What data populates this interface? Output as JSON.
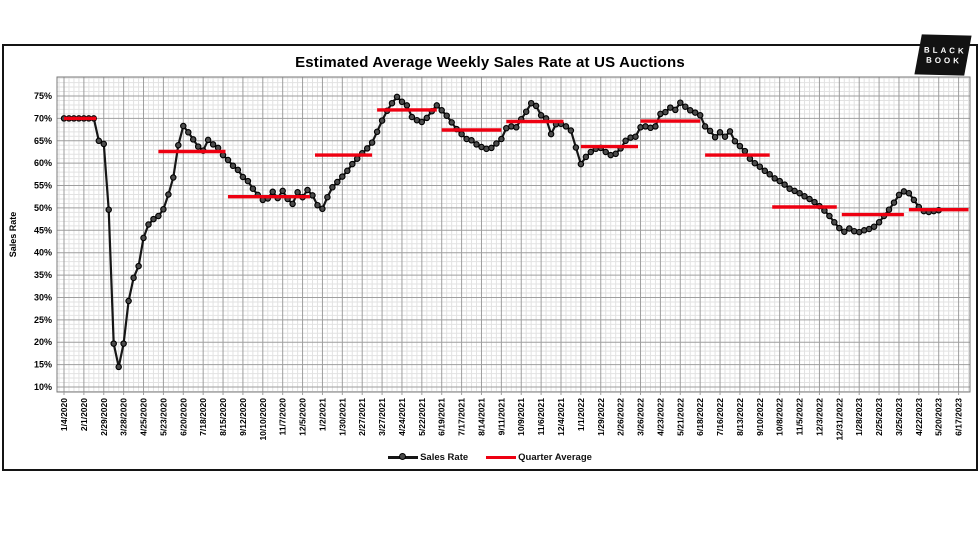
{
  "title": "Estimated Average Weekly Sales Rate at US Auctions",
  "logo": {
    "line1": "BLACK",
    "line2": "BOOK"
  },
  "y_axis": {
    "title": "Sales Rate",
    "ticks": [
      "10%",
      "15%",
      "20%",
      "25%",
      "30%",
      "35%",
      "40%",
      "45%",
      "50%",
      "55%",
      "60%",
      "65%",
      "70%",
      "75%"
    ],
    "min": 10,
    "max": 75,
    "step": 5
  },
  "x_axis": {
    "weeks_per_tick": 4,
    "tick_labels": [
      "1/4/2020",
      "2/1/2020",
      "2/29/2020",
      "3/28/2020",
      "4/25/2020",
      "5/23/2020",
      "6/20/2020",
      "7/18/2020",
      "8/15/2020",
      "9/12/2020",
      "10/10/2020",
      "11/7/2020",
      "12/5/2020",
      "1/2/2021",
      "1/30/2021",
      "2/27/2021",
      "3/27/2021",
      "4/24/2021",
      "5/22/2021",
      "6/19/2021",
      "7/17/2021",
      "8/14/2021",
      "9/11/2021",
      "10/9/2021",
      "11/6/2021",
      "12/4/2021",
      "1/1/2022",
      "1/29/2022",
      "2/26/2022",
      "3/26/2022",
      "4/23/2022",
      "5/21/2022",
      "6/18/2022",
      "7/16/2022",
      "8/13/2022",
      "9/10/2022",
      "10/8/2022",
      "11/5/2022",
      "12/3/2022",
      "12/31/2022",
      "1/28/2023",
      "2/25/2023",
      "3/25/2023",
      "4/22/2023",
      "5/20/2023",
      "6/17/2023"
    ]
  },
  "legend": {
    "items": [
      {
        "label": "Sales Rate",
        "type": "line-marker",
        "color": "#161616"
      },
      {
        "label": "Quarter Average",
        "type": "line",
        "color": "#ee0011"
      }
    ]
  },
  "chart_data": {
    "type": "line",
    "title": "Estimated Average Weekly Sales Rate at US Auctions",
    "ylabel": "Sales Rate",
    "ylim": [
      10,
      75
    ],
    "grid": true,
    "legend_position": "bottom",
    "x_start_label": "1/4/2020",
    "x_interval": "weekly",
    "series": [
      {
        "name": "Sales Rate",
        "unit": "percent",
        "values": [
          70,
          70,
          70,
          70,
          70,
          70,
          70,
          65,
          64.3,
          49.6,
          19.7,
          14.5,
          19.7,
          29.2,
          34.4,
          37,
          43.3,
          46.3,
          47.5,
          48.2,
          49.7,
          53,
          56.8,
          64,
          68.3,
          66.9,
          65.3,
          63.7,
          62.8,
          65.2,
          64.2,
          63.4,
          61.8,
          60.7,
          59.4,
          58.5,
          56.9,
          56,
          54.3,
          52.9,
          51.8,
          52.1,
          53.6,
          52.2,
          53.8,
          52,
          50.9,
          53.5,
          52.4,
          54,
          52.8,
          50.6,
          49.8,
          52.4,
          54.6,
          55.8,
          57,
          58.3,
          59.8,
          61,
          62.2,
          63.3,
          64.6,
          67,
          69.5,
          71.7,
          73.4,
          74.8,
          73.7,
          72.9,
          70.3,
          69.6,
          69.2,
          70.1,
          71.6,
          72.9,
          71.8,
          70.6,
          69.1,
          67.6,
          66.5,
          65.4,
          65.1,
          64.2,
          63.6,
          63.2,
          63.4,
          64.4,
          65.4,
          67.8,
          68.2,
          68,
          69.8,
          71.5,
          73.4,
          72.8,
          70.7,
          70,
          66.5,
          68.7,
          68.8,
          68.2,
          67.3,
          63.5,
          59.8,
          61.4,
          62.5,
          63.2,
          63.4,
          62.5,
          61.8,
          62.1,
          63.3,
          65,
          65.7,
          65.9,
          68,
          68.2,
          67.9,
          68.2,
          71,
          71.4,
          72.4,
          71.9,
          73.5,
          72.6,
          71.8,
          71.3,
          70.7,
          68.2,
          67.2,
          65.8,
          66.9,
          65.9,
          67.1,
          64.9,
          63.8,
          62.7,
          61,
          60,
          59.2,
          58.3,
          57.5,
          56.6,
          56,
          55.2,
          54.3,
          53.8,
          53.3,
          52.6,
          52,
          51.3,
          50.4,
          49.4,
          48.2,
          46.8,
          45.5,
          44.7,
          45.4,
          44.8,
          44.6,
          45,
          45.3,
          45.8,
          46.8,
          48.2,
          49.6,
          51.2,
          52.9,
          53.7,
          53.3,
          51.8,
          50.2,
          49.3,
          49.1,
          49.3,
          49.5
        ]
      },
      {
        "name": "Quarter Average",
        "unit": "percent",
        "segments": [
          {
            "start_week": 0,
            "end_week": 6.5,
            "value": 70.0
          },
          {
            "start_week": 19,
            "end_week": 32.5,
            "value": 62.6
          },
          {
            "start_week": 33,
            "end_week": 49.5,
            "value": 52.5
          },
          {
            "start_week": 50.5,
            "end_week": 62,
            "value": 61.8
          },
          {
            "start_week": 63,
            "end_week": 75,
            "value": 71.9
          },
          {
            "start_week": 76,
            "end_week": 88,
            "value": 67.4
          },
          {
            "start_week": 89,
            "end_week": 100.5,
            "value": 69.3
          },
          {
            "start_week": 104,
            "end_week": 115.5,
            "value": 63.7
          },
          {
            "start_week": 116,
            "end_week": 128,
            "value": 69.4
          },
          {
            "start_week": 129,
            "end_week": 142,
            "value": 61.8
          },
          {
            "start_week": 142.5,
            "end_week": 155.5,
            "value": 50.2
          },
          {
            "start_week": 156.5,
            "end_week": 169,
            "value": 48.5
          },
          {
            "start_week": 170,
            "end_week": 182,
            "value": 49.6
          }
        ]
      }
    ]
  },
  "colors": {
    "sales_rate_line": "#161616",
    "marker_fill": "#4a4a4a",
    "marker_stroke": "#000000",
    "quarter_avg": "#ee0011",
    "grid_minor": "#e2e2e2",
    "grid_major": "#9e9e9e",
    "plot_border": "#7a7a7a",
    "axis_text": "#000000",
    "frame": "#141414",
    "logo_bg": "#121212"
  }
}
